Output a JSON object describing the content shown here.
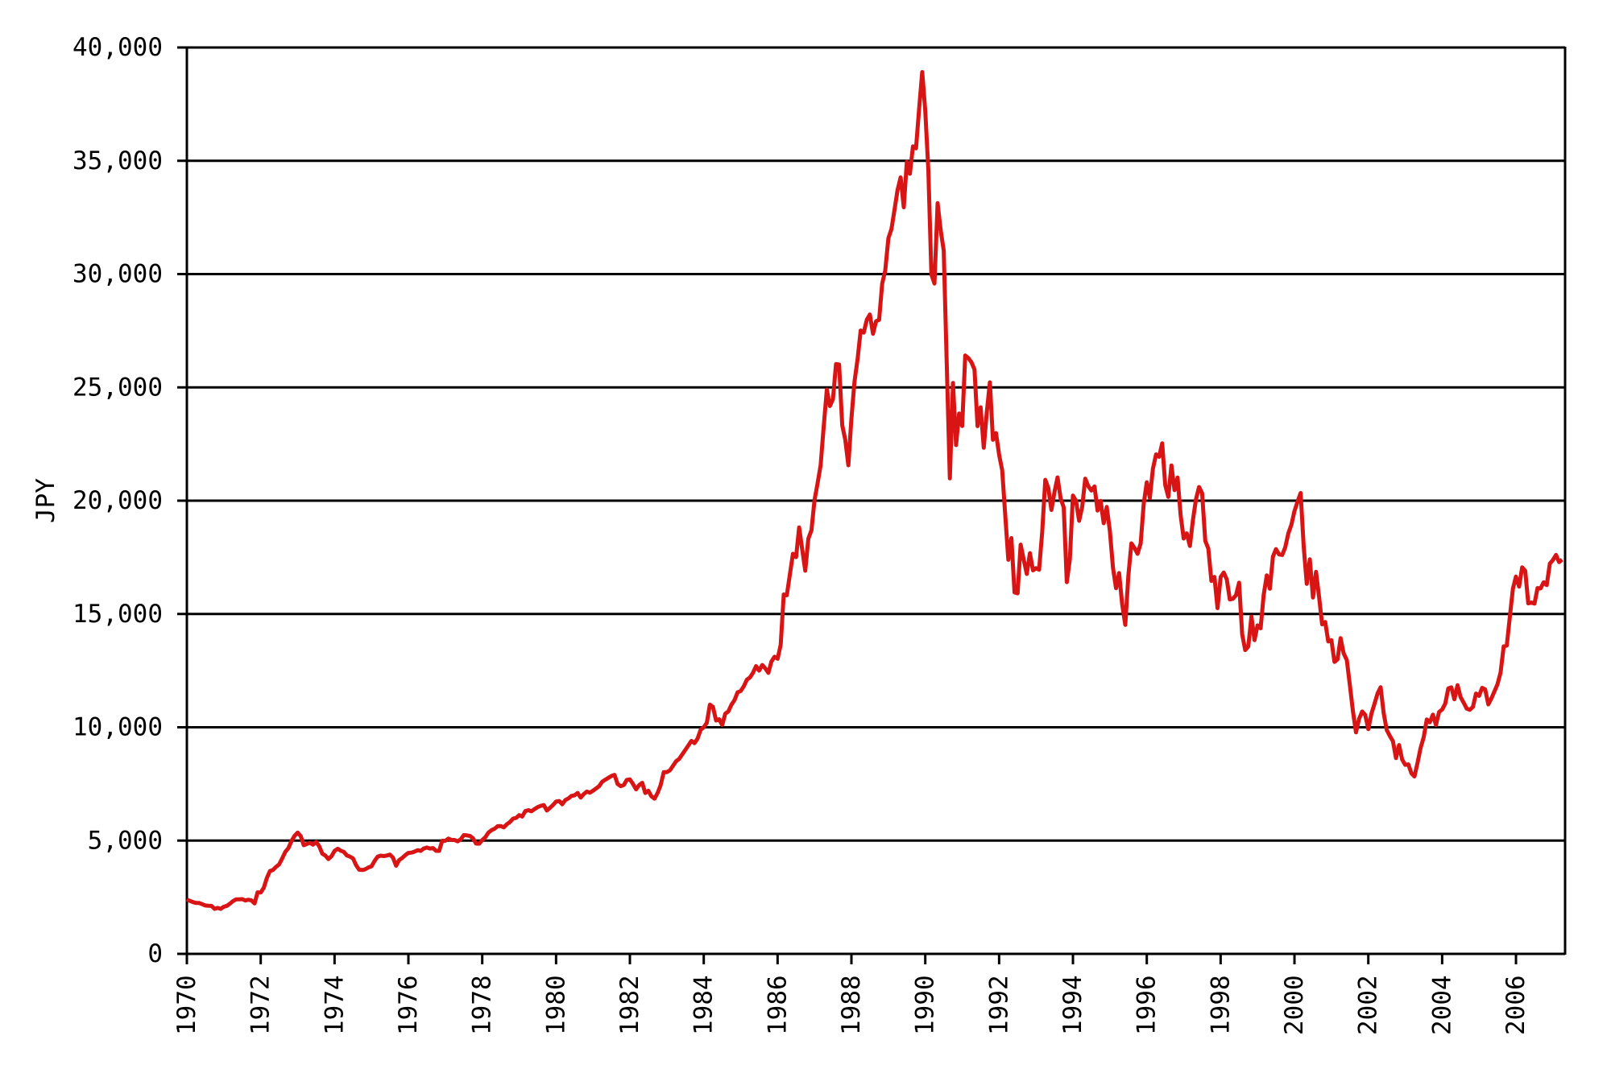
{
  "chart_data": {
    "type": "line",
    "title": "",
    "xlabel": "",
    "ylabel": "JPY",
    "grid": "horizontal",
    "legend": "none",
    "background_color": "#ffffff",
    "axis_color": "#000000",
    "line_color": "#d81414",
    "ylim": [
      0,
      40000
    ],
    "xlim": [
      1970,
      2007.33
    ],
    "y_ticks": [
      {
        "value": 0,
        "label": "0"
      },
      {
        "value": 5000,
        "label": "5,000"
      },
      {
        "value": 10000,
        "label": "10,000"
      },
      {
        "value": 15000,
        "label": "15,000"
      },
      {
        "value": 20000,
        "label": "20,000"
      },
      {
        "value": 25000,
        "label": "25,000"
      },
      {
        "value": 30000,
        "label": "30,000"
      },
      {
        "value": 35000,
        "label": "35,000"
      },
      {
        "value": 40000,
        "label": "40,000"
      }
    ],
    "x_ticks": [
      {
        "year": 1970,
        "label": "1970"
      },
      {
        "year": 1972,
        "label": "1972"
      },
      {
        "year": 1974,
        "label": "1974"
      },
      {
        "year": 1976,
        "label": "1976"
      },
      {
        "year": 1978,
        "label": "1978"
      },
      {
        "year": 1980,
        "label": "1980"
      },
      {
        "year": 1982,
        "label": "1982"
      },
      {
        "year": 1984,
        "label": "1984"
      },
      {
        "year": 1986,
        "label": "1986"
      },
      {
        "year": 1988,
        "label": "1988"
      },
      {
        "year": 1990,
        "label": "1990"
      },
      {
        "year": 1992,
        "label": "1992"
      },
      {
        "year": 1994,
        "label": "1994"
      },
      {
        "year": 1996,
        "label": "1996"
      },
      {
        "year": 1998,
        "label": "1998"
      },
      {
        "year": 2000,
        "label": "2000"
      },
      {
        "year": 2002,
        "label": "2002"
      },
      {
        "year": 2004,
        "label": "2004"
      },
      {
        "year": 2006,
        "label": "2006"
      }
    ],
    "series": [
      {
        "start_year": 1970,
        "points_per_year": 12,
        "values": [
          2402,
          2339,
          2283,
          2245,
          2245,
          2193,
          2135,
          2123,
          2119,
          1987,
          2027,
          1987,
          2077,
          2121,
          2218,
          2332,
          2404,
          2408,
          2417,
          2357,
          2390,
          2360,
          2224,
          2714,
          2712,
          2918,
          3348,
          3657,
          3700,
          3845,
          3950,
          4222,
          4501,
          4663,
          4985,
          5208,
          5350,
          5202,
          4796,
          4853,
          4900,
          4820,
          4940,
          4757,
          4421,
          4339,
          4186,
          4307,
          4543,
          4640,
          4554,
          4500,
          4341,
          4295,
          4210,
          3910,
          3711,
          3700,
          3732,
          3817,
          3860,
          4100,
          4286,
          4333,
          4315,
          4341,
          4380,
          4245,
          3889,
          4140,
          4234,
          4358,
          4455,
          4465,
          4510,
          4576,
          4545,
          4650,
          4691,
          4650,
          4669,
          4548,
          4546,
          4990,
          4990,
          5088,
          5030,
          5028,
          4966,
          5050,
          5240,
          5229,
          5206,
          5100,
          4866,
          4865,
          5024,
          5147,
          5349,
          5458,
          5525,
          5635,
          5640,
          5586,
          5720,
          5820,
          5967,
          6001,
          6120,
          6060,
          6300,
          6340,
          6290,
          6390,
          6477,
          6530,
          6570,
          6326,
          6440,
          6569,
          6721,
          6745,
          6600,
          6790,
          6859,
          6970,
          7000,
          7100,
          6900,
          7050,
          7160,
          7116,
          7200,
          7300,
          7400,
          7600,
          7686,
          7770,
          7850,
          7900,
          7500,
          7400,
          7450,
          7681,
          7700,
          7500,
          7260,
          7450,
          7550,
          7100,
          7200,
          6950,
          6850,
          7100,
          7450,
          8016,
          8020,
          8100,
          8300,
          8500,
          8600,
          8800,
          9000,
          9200,
          9400,
          9300,
          9500,
          9893,
          10000,
          10200,
          11000,
          10900,
          10300,
          10350,
          10100,
          10600,
          10700,
          11000,
          11200,
          11542,
          11600,
          11800,
          12100,
          12200,
          12400,
          12700,
          12500,
          12750,
          12600,
          12400,
          12900,
          13113,
          13024,
          13641,
          15860,
          15826,
          16739,
          17654,
          17510,
          18821,
          17853,
          16911,
          18325,
          18701,
          20024,
          20766,
          21567,
          23275,
          24902,
          24176,
          24488,
          26029,
          26010,
          23329,
          22687,
          21564,
          23622,
          25243,
          26260,
          27509,
          27417,
          27983,
          28215,
          27366,
          27923,
          27984,
          29579,
          30159,
          31581,
          31986,
          32839,
          33713,
          34267,
          32949,
          34954,
          34431,
          35637,
          35549,
          37269,
          38916,
          37189,
          34592,
          29980,
          29585,
          33131,
          31940,
          31036,
          25978,
          20984,
          25194,
          22455,
          23849,
          23293,
          26409,
          26292,
          26111,
          25790,
          23291,
          24121,
          22336,
          23916,
          25222,
          22687,
          22984,
          22023,
          21339,
          19346,
          17391,
          18348,
          15952,
          15910,
          18061,
          17399,
          16767,
          17684,
          16925,
          17024,
          16953,
          18591,
          20919,
          20552,
          19590,
          20380,
          21027,
          20105,
          19703,
          16406,
          17417,
          20229,
          19997,
          19111,
          19725,
          20973,
          20643,
          20449,
          20629,
          19564,
          19990,
          19007,
          19723,
          18650,
          17053,
          16140,
          16806,
          15437,
          14517,
          16677,
          18117,
          17913,
          17655,
          18109,
          19868,
          20813,
          20118,
          21407,
          22041,
          21936,
          22531,
          20693,
          20167,
          21556,
          20467,
          21020,
          19361,
          18330,
          18557,
          18003,
          19151,
          20069,
          20605,
          20331,
          18229,
          17888,
          16459,
          16636,
          15259,
          16628,
          16832,
          16527,
          15641,
          15671,
          15830,
          16379,
          14107,
          13406,
          13565,
          14884,
          13842,
          14499,
          14368,
          15837,
          16702,
          16112,
          17530,
          17861,
          17626,
          17605,
          17942,
          18558,
          18934,
          19539,
          19959,
          20337,
          17974,
          16332,
          17411,
          15727,
          16861,
          15747,
          14540,
          14648,
          13786,
          13844,
          12884,
          12999,
          13934,
          13262,
          12969,
          11861,
          10714,
          9775,
          10366,
          10697,
          10543,
          9919,
          10588,
          11025,
          11493,
          11764,
          10622,
          9878,
          9619,
          9383,
          8640,
          9216,
          8579,
          8340,
          8363,
          7973,
          7831,
          8425,
          9083,
          9563,
          10343,
          10219,
          10559,
          10100,
          10677,
          10784,
          11041,
          11715,
          11761,
          11236,
          11858,
          11326,
          11082,
          10824,
          10771,
          10899,
          11489,
          11387,
          11740,
          11669,
          11009,
          11276,
          11584,
          11900,
          12414,
          13574,
          13606,
          14872,
          16111,
          16649,
          16205,
          17060,
          16906,
          15467,
          15505,
          15457,
          16141,
          16128,
          16399,
          16274,
          17226,
          17383,
          17604,
          17288,
          17400
        ]
      }
    ]
  }
}
